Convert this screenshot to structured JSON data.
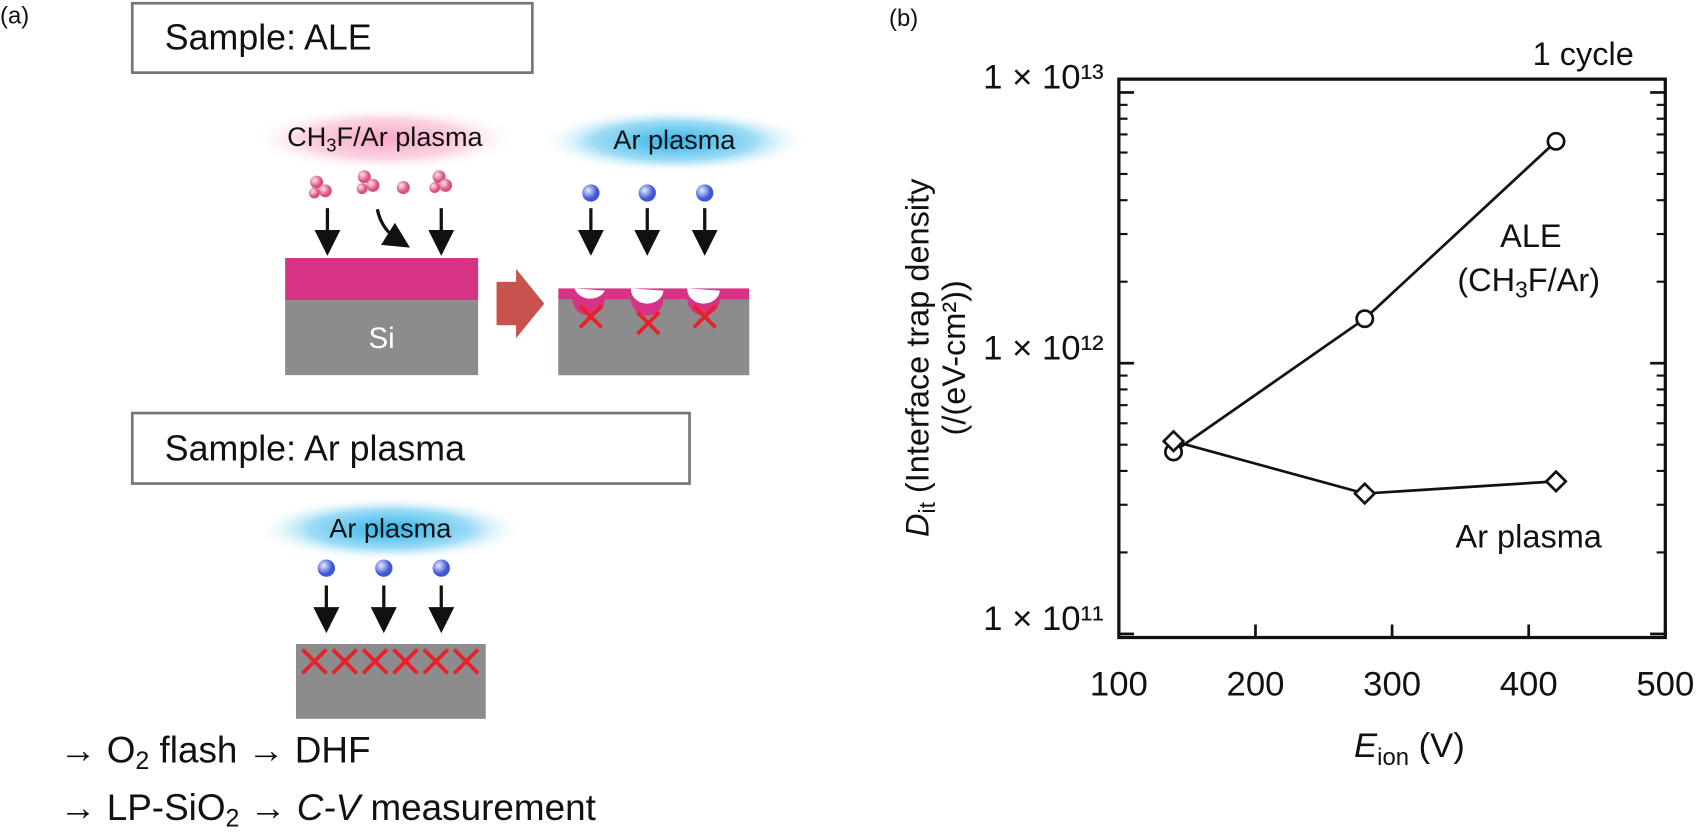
{
  "panel_a": {
    "panel_label": "(a)",
    "ale_box": "Sample: ALE",
    "ch3f_plasma": [
      "CH",
      "3",
      "F/Ar plasma"
    ],
    "ar_plasma_top": "Ar plasma",
    "si_label": "Si",
    "ar_box": "Sample: Ar plasma",
    "ar_plasma_bottom": "Ar plasma",
    "step_1": [
      "→ O",
      "2",
      " flash → DHF"
    ],
    "step_2": [
      "→ LP-SiO",
      "2",
      " → ",
      "C-V",
      " measurement"
    ]
  },
  "chart_data": {
    "type": "line",
    "panel_label": "(b)",
    "title": "1 cycle",
    "xlabel": [
      "E",
      "ion",
      " (V)"
    ],
    "ylabel": [
      "D",
      "it",
      " (Interface trap density",
      "(/(eV-cm²))"
    ],
    "log_y": true,
    "xlim": [
      100,
      500
    ],
    "xticks": [
      100,
      200,
      300,
      400,
      500
    ],
    "ylim": [
      97000000000,
      11200000000000
    ],
    "yticks": [
      {
        "value": 100000000000,
        "label": "1 × 10¹¹"
      },
      {
        "value": 1000000000000,
        "label": "1 × 10¹²"
      },
      {
        "value": 10000000000000,
        "label": "1 × 10¹³"
      }
    ],
    "yminorticks": [
      200000000000,
      300000000000,
      400000000000,
      500000000000,
      600000000000,
      700000000000,
      800000000000,
      900000000000,
      2000000000000,
      3000000000000,
      4000000000000,
      5000000000000,
      6000000000000,
      7000000000000,
      8000000000000,
      9000000000000
    ],
    "series": [
      {
        "name": [
          "ALE",
          "(CH",
          "3",
          "F/Ar)"
        ],
        "color": "#111111",
        "marker": "circle",
        "x": [
          140,
          280,
          420
        ],
        "values": [
          470000000000,
          1460000000000,
          6600000000000
        ]
      },
      {
        "name": "Ar plasma",
        "color": "#111111",
        "marker": "diamond",
        "x": [
          140,
          280,
          420
        ],
        "values": [
          515000000000,
          330000000000,
          366000000000
        ]
      }
    ]
  }
}
